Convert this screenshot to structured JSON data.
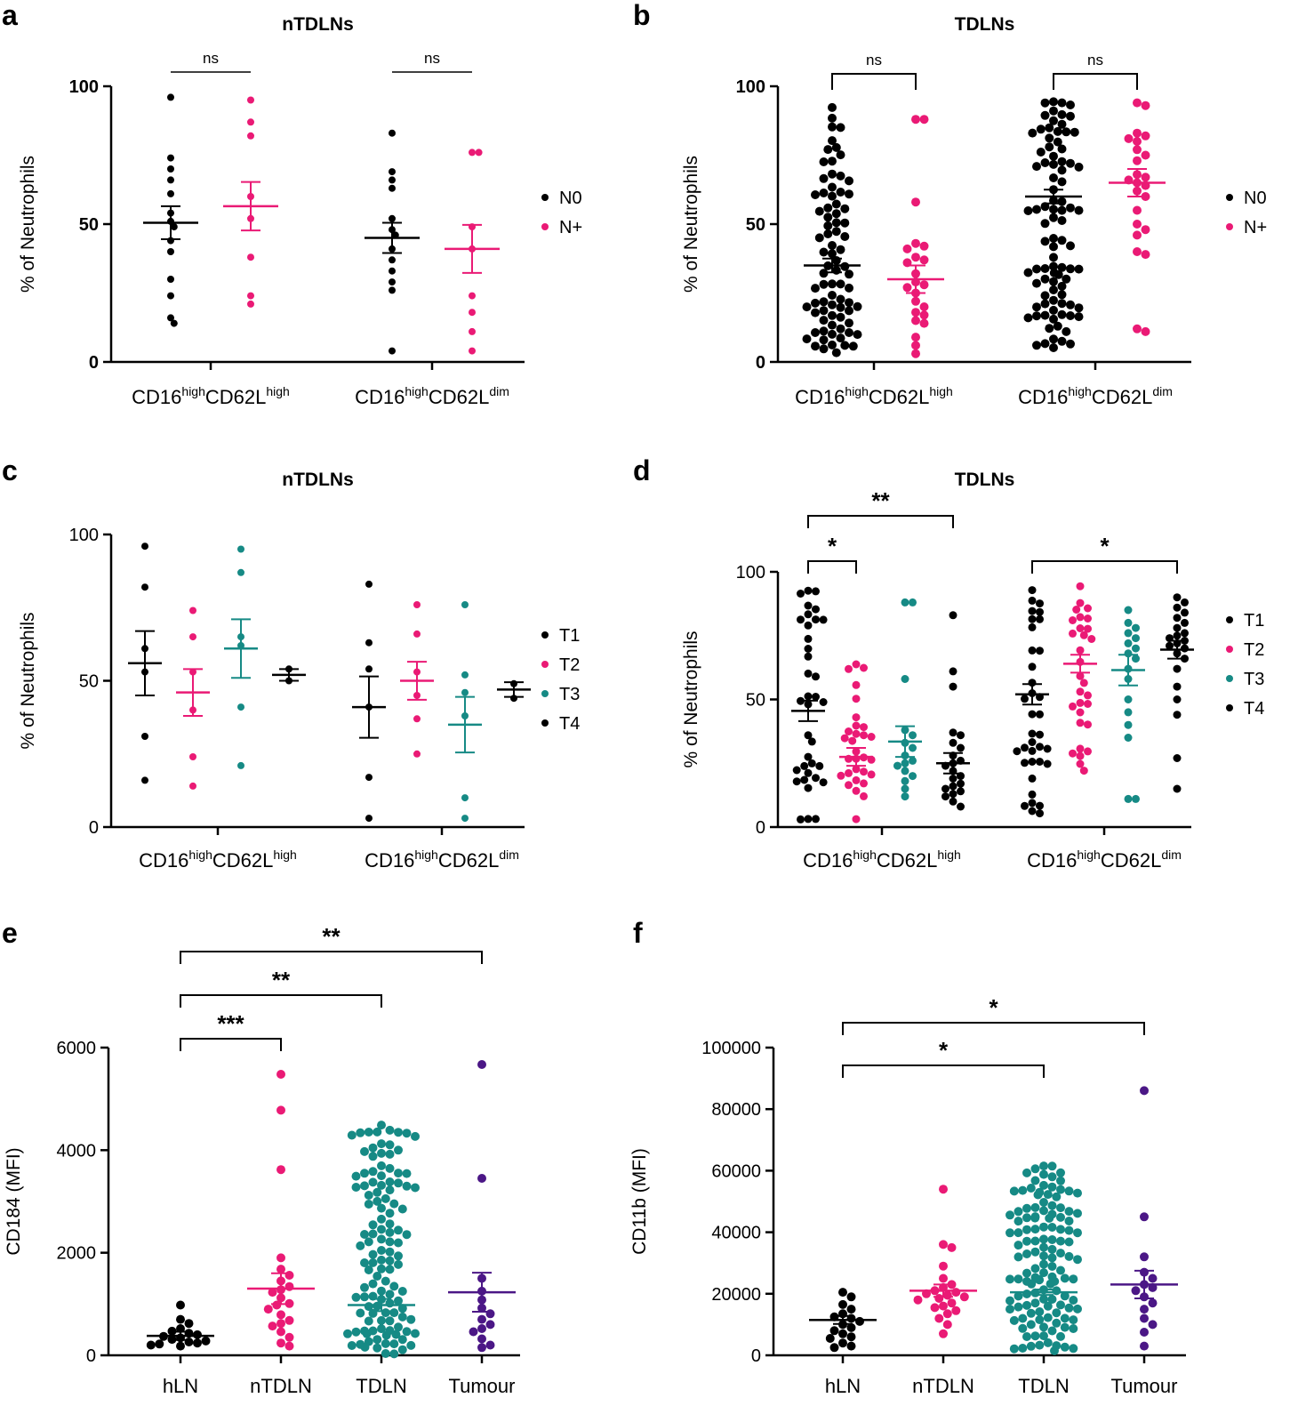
{
  "chart_data": [
    {
      "panel": "a",
      "type": "scatter",
      "title": "nTDLNs",
      "ylabel": "% of Neutrophils",
      "ylim": [
        0,
        100
      ],
      "yticks": [
        "0",
        "50",
        "100"
      ],
      "groups": [
        {
          "label": [
            "CD16",
            "high",
            "CD62L",
            "high"
          ]
        },
        {
          "label": [
            "CD16",
            "high",
            "CD62L",
            "dim"
          ]
        }
      ],
      "series": [
        {
          "name": "N0",
          "color": "#000000",
          "groups": [
            {
              "values": [
                96,
                74,
                70,
                66,
                61,
                54,
                51,
                49,
                44,
                40,
                30,
                24,
                16,
                14
              ],
              "mean": 50.5,
              "sem": 6.0
            },
            {
              "values": [
                83,
                69,
                66,
                63,
                52,
                48,
                46,
                41,
                37,
                33,
                29,
                26,
                4
              ],
              "mean": 45,
              "sem": 5.5
            }
          ]
        },
        {
          "name": "N+",
          "color": "#ea1a75",
          "groups": [
            {
              "values": [
                95,
                87,
                82,
                60,
                52,
                38,
                24,
                21
              ],
              "mean": 56.5,
              "sem": 8.8
            },
            {
              "values": [
                76,
                76,
                49,
                41,
                24,
                18,
                11,
                4
              ],
              "mean": 41,
              "sem": 8.7
            }
          ]
        }
      ],
      "comparisons": [
        {
          "text": "ns"
        },
        {
          "text": "ns"
        }
      ],
      "legend": [
        "N0",
        "N+"
      ]
    },
    {
      "panel": "b",
      "type": "scatter",
      "title": "TDLNs",
      "ylabel": "% of Neutrophils",
      "ylim": [
        0,
        100
      ],
      "yticks": [
        "0",
        "50",
        "100"
      ],
      "groups": [
        {
          "label": [
            "CD16",
            "high",
            "CD62L",
            "high"
          ]
        },
        {
          "label": [
            "CD16",
            "high",
            "CD62L",
            "dim"
          ]
        }
      ],
      "series": [
        {
          "name": "N0",
          "color": "#000000",
          "groups": [
            {
              "n": 80,
              "min": 3,
              "max": 93,
              "mean": 35,
              "sem": 2.5
            },
            {
              "n": 90,
              "min": 5,
              "max": 95,
              "mean": 60,
              "sem": 2.5
            }
          ]
        },
        {
          "name": "N+",
          "color": "#ea1a75",
          "groups": [
            {
              "values": [
                88,
                88,
                58,
                43,
                42,
                41,
                38,
                37,
                36,
                32,
                29,
                28,
                27,
                25,
                22,
                20,
                18,
                17,
                15,
                14,
                9,
                6,
                3
              ],
              "mean": 30,
              "sem": 5
            },
            {
              "values": [
                94,
                93,
                83,
                82,
                81,
                80,
                77,
                75,
                73,
                68,
                67,
                66,
                65,
                64,
                62,
                60,
                55,
                50,
                48,
                46,
                40,
                39,
                12,
                11
              ],
              "mean": 65,
              "sem": 5
            }
          ]
        }
      ],
      "comparisons": [
        {
          "text": "ns"
        },
        {
          "text": "ns"
        }
      ],
      "legend": [
        "N0",
        "N+"
      ]
    },
    {
      "panel": "c",
      "type": "scatter",
      "title": "nTDLNs",
      "ylabel": "% of Neutrophils",
      "ylim": [
        0,
        100
      ],
      "yticks": [
        "0",
        "50",
        "100"
      ],
      "groups": [
        {
          "label": [
            "CD16",
            "high",
            "CD62L",
            "high"
          ]
        },
        {
          "label": [
            "CD16",
            "high",
            "CD62L",
            "dim"
          ]
        }
      ],
      "series": [
        {
          "name": "T1",
          "color": "#000000",
          "groups": [
            {
              "values": [
                96,
                82,
                61,
                53,
                31,
                16
              ],
              "mean": 56,
              "sem": 11
            },
            {
              "values": [
                83,
                63,
                54,
                41,
                17,
                3
              ],
              "mean": 41,
              "sem": 10.5
            }
          ]
        },
        {
          "name": "T2",
          "color": "#ea1a75",
          "groups": [
            {
              "values": [
                74,
                65,
                53,
                40,
                24,
                14
              ],
              "mean": 46,
              "sem": 8
            },
            {
              "values": [
                76,
                66,
                53,
                45,
                37,
                25
              ],
              "mean": 50,
              "sem": 6.5
            }
          ]
        },
        {
          "name": "T3",
          "color": "#168a85",
          "groups": [
            {
              "values": [
                95,
                87,
                65,
                62,
                41,
                21
              ],
              "mean": 61,
              "sem": 10
            },
            {
              "values": [
                76,
                52,
                46,
                38,
                10,
                3
              ],
              "mean": 35,
              "sem": 9.5
            }
          ]
        },
        {
          "name": "T4",
          "color": "#000000",
          "groups": [
            {
              "values": [
                54,
                50
              ],
              "mean": 52,
              "sem": 2
            },
            {
              "values": [
                49,
                44
              ],
              "mean": 47,
              "sem": 2.5
            }
          ]
        }
      ],
      "legend": [
        "T1",
        "T2",
        "T3",
        "T4"
      ]
    },
    {
      "panel": "d",
      "type": "scatter",
      "title": "TDLNs",
      "ylabel": "% of Neutrophils",
      "ylim": [
        0,
        100
      ],
      "yticks": [
        "0",
        "50",
        "100"
      ],
      "groups": [
        {
          "label": [
            "CD16",
            "high",
            "CD62L",
            "high"
          ]
        },
        {
          "label": [
            "CD16",
            "high",
            "CD62L",
            "dim"
          ]
        }
      ],
      "series": [
        {
          "name": "T1",
          "color": "#000000",
          "groups": [
            {
              "n": 36,
              "min": 2,
              "max": 93,
              "mean": 45.5,
              "sem": 4
            },
            {
              "n": 36,
              "min": 4,
              "max": 93,
              "mean": 52,
              "sem": 4
            }
          ]
        },
        {
          "name": "T2",
          "color": "#ea1a75",
          "groups": [
            {
              "n": 30,
              "min": 3,
              "max": 65,
              "mean": 27.5,
              "sem": 3.5
            },
            {
              "n": 30,
              "min": 22,
              "max": 95,
              "mean": 64,
              "sem": 3.5
            }
          ]
        },
        {
          "name": "T3",
          "color": "#168a85",
          "groups": [
            {
              "values": [
                88,
                88,
                58,
                38,
                36,
                33,
                31,
                28,
                26,
                25,
                24,
                22,
                20,
                18,
                15,
                12
              ],
              "mean": 33.5,
              "sem": 6
            },
            {
              "values": [
                85,
                80,
                78,
                76,
                74,
                72,
                70,
                68,
                66,
                62,
                58,
                50,
                45,
                40,
                35,
                11,
                11
              ],
              "mean": 61.5,
              "sem": 6
            }
          ]
        },
        {
          "name": "T4",
          "color": "#000000",
          "groups": [
            {
              "values": [
                83,
                61,
                55,
                37,
                36,
                33,
                31,
                28,
                26,
                25,
                24,
                22,
                20,
                19,
                17,
                16,
                15,
                14,
                13,
                12,
                10,
                8
              ],
              "mean": 25,
              "sem": 4
            },
            {
              "values": [
                90,
                88,
                86,
                84,
                82,
                80,
                78,
                76,
                75,
                74,
                73,
                72,
                71,
                70,
                68,
                66,
                62,
                55,
                50,
                44,
                27,
                15
              ],
              "mean": 69.5,
              "sem": 3.5
            }
          ]
        }
      ],
      "comparisons": [
        {
          "text": "**"
        },
        {
          "text": "*"
        },
        {
          "text": "*"
        }
      ],
      "legend": [
        "T1",
        "T2",
        "T3",
        "T4"
      ]
    },
    {
      "panel": "e",
      "type": "scatter",
      "title": "",
      "ylabel": "CD184 (MFI)",
      "ylim": [
        0,
        6000
      ],
      "yticks": [
        "0",
        "2000",
        "4000",
        "6000"
      ],
      "categories": [
        "hLN",
        "nTDLN",
        "TDLN",
        "Tumour"
      ],
      "series": [
        {
          "name": "hLN",
          "color": "#000000",
          "values": [
            980,
            700,
            620,
            520,
            470,
            430,
            400,
            370,
            340,
            310,
            280,
            260,
            240,
            220,
            200,
            180
          ],
          "mean": 380,
          "sem": 80
        },
        {
          "name": "nTDLN",
          "color": "#ea1a75",
          "values": [
            5480,
            4780,
            3620,
            1900,
            1560,
            1450,
            1340,
            1230,
            1120,
            1010,
            900,
            790,
            680,
            570,
            460,
            350,
            240,
            180,
            1680,
            1280,
            980,
            620
          ],
          "mean": 1300,
          "sem": 300
        },
        {
          "name": "TDLN",
          "color": "#168a85",
          "n": 120,
          "min": 10,
          "max": 4700,
          "mean": 980,
          "sem": 120
        },
        {
          "name": "Tumour",
          "color": "#4b1786",
          "values": [
            5670,
            3450,
            1500,
            1250,
            1080,
            920,
            810,
            700,
            600,
            520,
            460,
            320,
            200,
            150
          ],
          "mean": 1230,
          "sem": 380
        }
      ],
      "comparisons": [
        {
          "text": "**"
        },
        {
          "text": "**"
        },
        {
          "text": "***"
        }
      ]
    },
    {
      "panel": "f",
      "type": "scatter",
      "title": "",
      "ylabel": "CD11b (MFI)",
      "ylim": [
        0,
        100000
      ],
      "yticks": [
        "0",
        "20000",
        "40000",
        "60000",
        "80000",
        "100000"
      ],
      "categories": [
        "hLN",
        "nTDLN",
        "TDLN",
        "Tumour"
      ],
      "series": [
        {
          "name": "hLN",
          "color": "#000000",
          "values": [
            20500,
            19000,
            16500,
            15000,
            13500,
            12500,
            12000,
            11000,
            10000,
            9000,
            8000,
            7000,
            6000,
            5500,
            4000,
            3000,
            2500
          ],
          "mean": 11500,
          "sem": 1300
        },
        {
          "name": "nTDLN",
          "color": "#ea1a75",
          "values": [
            54000,
            36000,
            35000,
            29000,
            25000,
            23000,
            22000,
            21000,
            20500,
            20000,
            19500,
            19000,
            18500,
            18000,
            17000,
            16000,
            15500,
            14500,
            13500,
            12000,
            10000,
            7000
          ],
          "mean": 21000,
          "sem": 2000
        },
        {
          "name": "TDLN",
          "color": "#168a85",
          "n": 130,
          "min": 500,
          "max": 62000,
          "mean": 20500,
          "sem": 900
        },
        {
          "name": "Tumour",
          "color": "#4b1786",
          "values": [
            86000,
            45000,
            32000,
            27000,
            25000,
            23000,
            22000,
            21000,
            19000,
            17000,
            15000,
            12000,
            10000,
            7500,
            3000
          ],
          "mean": 23000,
          "sem": 4500
        }
      ],
      "comparisons": [
        {
          "text": "*"
        },
        {
          "text": "*"
        }
      ]
    }
  ]
}
